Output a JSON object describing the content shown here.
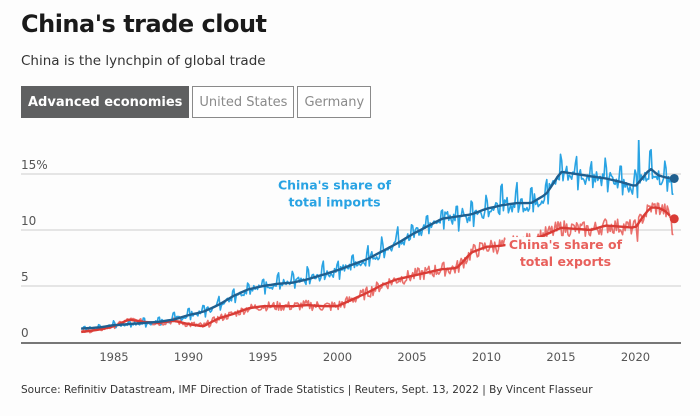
{
  "header": {
    "title": "China's trade clout",
    "subtitle": "China is the lynchpin of global trade"
  },
  "tabs": [
    {
      "label": "Advanced economies",
      "active": true
    },
    {
      "label": "United States",
      "active": false
    },
    {
      "label": "Germany",
      "active": false
    }
  ],
  "footer": {
    "source": "Source: Refinitiv Datastream, IMF Direction of Trade Statistics | Reuters, Sept. 13, 2022 | By Vincent Flasseur"
  },
  "colors": {
    "imports_raw": "#29a3e3",
    "imports_trend": "#1f5f8f",
    "exports_raw": "#e8605c",
    "exports_trend": "#d93b35",
    "grid": "#dddddd",
    "axis": "#777777",
    "tick_text": "#555555"
  },
  "chart_data": {
    "type": "line",
    "title": "China's trade clout",
    "subtitle": "China is the lynchpin of global trade",
    "xlabel": "",
    "ylabel": "",
    "xlim": [
      1980.5,
      2023.3
    ],
    "ylim": [
      0,
      15
    ],
    "y_ticks": [
      0,
      5,
      10,
      15
    ],
    "y_tick_labels": [
      "0",
      "5",
      "10",
      "15%"
    ],
    "x_ticks": [
      1985,
      1990,
      1995,
      2000,
      2005,
      2010,
      2015,
      2020
    ],
    "x_tick_labels": [
      "1985",
      "1990",
      "1995",
      "2000",
      "2005",
      "2010",
      "2015",
      "2020"
    ],
    "grid": true,
    "legend": "inline-annotations",
    "annotations": [
      {
        "text_lines": [
          "China's share of",
          "total imports"
        ],
        "series": "imports",
        "anchor": [
          1999.8,
          13.6
        ]
      },
      {
        "text_lines": [
          "China's share of",
          "total exports"
        ],
        "series": "exports",
        "anchor": [
          2015.3,
          8.3
        ]
      }
    ],
    "series": [
      {
        "name": "China's share of total imports (trend)",
        "key": "imports_trend",
        "x": [
          1982.8,
          1984,
          1985,
          1986,
          1987,
          1988,
          1989,
          1990,
          1991,
          1992,
          1993,
          1994,
          1995,
          1996,
          1997,
          1998,
          1999,
          2000,
          2001,
          2002,
          2003,
          2004,
          2005,
          2006,
          2007,
          2008,
          2009,
          2010,
          2011,
          2012,
          2013,
          2014,
          2015,
          2016,
          2017,
          2018,
          2019,
          2020,
          2020.5,
          2021,
          2021.5,
          2022,
          2022.5
        ],
        "values": [
          1.2,
          1.3,
          1.5,
          1.6,
          1.7,
          1.8,
          2.0,
          2.4,
          2.7,
          3.3,
          4.1,
          4.7,
          5.0,
          5.2,
          5.3,
          5.6,
          6.0,
          6.4,
          6.9,
          7.4,
          8.1,
          8.8,
          9.6,
          10.3,
          11.0,
          11.2,
          11.4,
          11.9,
          12.2,
          12.4,
          12.4,
          13.2,
          15.2,
          15.0,
          14.8,
          14.6,
          14.3,
          13.9,
          14.7,
          15.5,
          14.9,
          14.7,
          14.6
        ]
      },
      {
        "name": "China's share of total exports (trend)",
        "key": "exports_trend",
        "x": [
          1982.8,
          1984,
          1985,
          1986,
          1987,
          1988,
          1989,
          1990,
          1991,
          1992,
          1993,
          1994,
          1995,
          1996,
          1997,
          1998,
          1999,
          2000,
          2001,
          2002,
          2003,
          2004,
          2005,
          2006,
          2007,
          2008,
          2009,
          2010,
          2011,
          2012,
          2013,
          2014,
          2015,
          2016,
          2017,
          2018,
          2019,
          2020,
          2020.5,
          2021,
          2021.5,
          2022,
          2022.5
        ],
        "values": [
          0.9,
          1.1,
          1.4,
          2.0,
          1.8,
          1.7,
          1.9,
          1.6,
          1.4,
          2.1,
          2.5,
          3.0,
          3.2,
          3.2,
          3.2,
          3.3,
          3.2,
          3.2,
          3.8,
          4.4,
          5.1,
          5.6,
          5.9,
          6.2,
          6.5,
          6.6,
          8.0,
          8.5,
          8.6,
          8.8,
          9.1,
          9.6,
          10.2,
          10.1,
          10.0,
          10.4,
          10.3,
          10.2,
          11.2,
          12.0,
          12.0,
          11.7,
          11.0
        ]
      },
      {
        "name": "China's share of total imports (monthly)",
        "key": "imports_raw",
        "description": "Seasonal monthly series oscillating around the imports trend; peak 18.3% in 2020",
        "seasonal_amplitude": [
          0.2,
          1.3
        ],
        "notable_points": [
          {
            "x": 2020.2,
            "y": 18.3
          },
          {
            "x": 2022.5,
            "y": 13.2
          }
        ]
      },
      {
        "name": "China's share of total exports (monthly)",
        "key": "exports_raw",
        "description": "Noisy monthly series around the exports trend; dip to ~9% in 2020",
        "seasonal_amplitude": [
          0.2,
          0.9
        ],
        "notable_points": [
          {
            "x": 2020.1,
            "y": 9.0
          },
          {
            "x": 2022.5,
            "y": 9.6
          }
        ]
      }
    ],
    "end_points": [
      {
        "series": "imports",
        "x": 2022.6,
        "y": 14.6
      },
      {
        "series": "exports",
        "x": 2022.6,
        "y": 11.0
      }
    ]
  }
}
